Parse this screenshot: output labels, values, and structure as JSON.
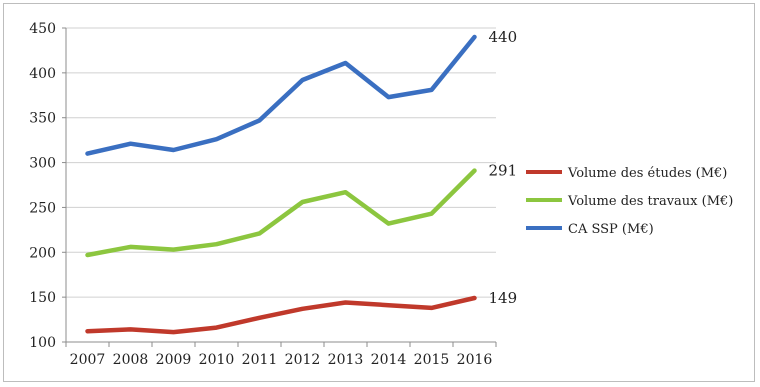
{
  "chart_data": {
    "type": "line",
    "x": [
      "2007",
      "2008",
      "2009",
      "2010",
      "2011",
      "2012",
      "2013",
      "2014",
      "2015",
      "2016"
    ],
    "ylim": [
      100,
      450
    ],
    "yticks": [
      "100",
      "150",
      "200",
      "250",
      "300",
      "350",
      "400",
      "450"
    ],
    "grid": "horizontal",
    "legend_position": "right",
    "series": [
      {
        "name": "Volume des études (M€)",
        "color": "#c0392b",
        "values": [
          112,
          114,
          111,
          116,
          127,
          137,
          144,
          141,
          138,
          149
        ],
        "end_label": "149"
      },
      {
        "name": "Volume des travaux (M€)",
        "color": "#8cc63f",
        "values": [
          197,
          206,
          203,
          209,
          221,
          256,
          267,
          232,
          243,
          291
        ],
        "end_label": "291"
      },
      {
        "name": "CA SSP (M€)",
        "color": "#3a6fc1",
        "values": [
          310,
          321,
          314,
          326,
          347,
          392,
          411,
          373,
          381,
          440
        ],
        "end_label": "440"
      }
    ]
  }
}
